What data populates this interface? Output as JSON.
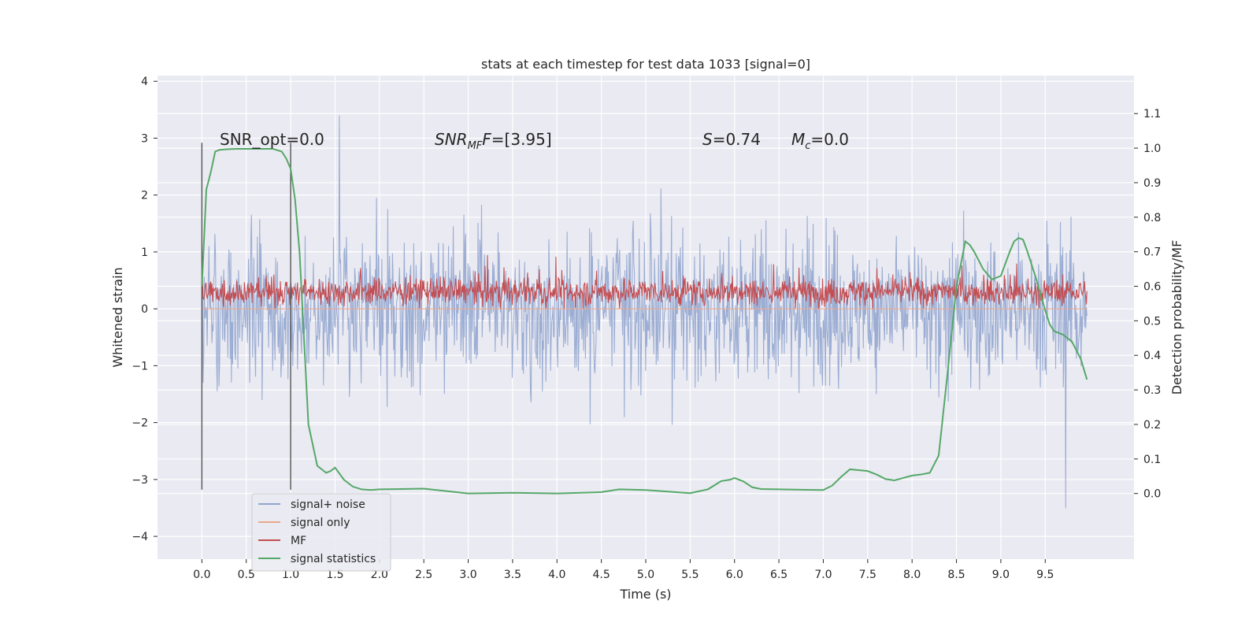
{
  "chart_data": {
    "type": "line",
    "title": "stats at each timestep for test data 1033 [signal=0]",
    "xlabel": "Time (s)",
    "ylabel": "Whitened strain",
    "y2label": "Detection probability/MF",
    "xlim": [
      -0.5,
      10.5
    ],
    "ylim": [
      -4.4,
      4.1
    ],
    "y2lim": [
      -0.19,
      1.21
    ],
    "xticks": [
      "0.0",
      "0.5",
      "1.0",
      "1.5",
      "2.0",
      "2.5",
      "3.0",
      "3.5",
      "4.0",
      "4.5",
      "5.0",
      "5.5",
      "6.0",
      "6.5",
      "7.0",
      "7.5",
      "8.0",
      "8.5",
      "9.0",
      "9.5"
    ],
    "yticks": [
      "−4",
      "−3",
      "−2",
      "−1",
      "0",
      "1",
      "2",
      "3",
      "4"
    ],
    "y2ticks": [
      "0.0",
      "0.1",
      "0.2",
      "0.3",
      "0.4",
      "0.5",
      "0.6",
      "0.7",
      "0.8",
      "0.9",
      "1.0",
      "1.1"
    ],
    "grid": true,
    "legend_position": "lower-left",
    "annotations": {
      "snr_opt": "SNR_opt=0.0",
      "snr_mf_base": "SNR",
      "snr_mf_sub": "MF",
      "snr_mf_tail": "=[3.95]",
      "s_var": "S",
      "s_val": "=0.74",
      "mc_var": "M",
      "mc_sub": "c",
      "mc_val": "=0.0"
    },
    "vertical_markers": [
      0.0,
      1.0
    ],
    "series": [
      {
        "name": "signal+ noise",
        "color": "#92a6cf",
        "description_range": [
          -4.0,
          3.75
        ]
      },
      {
        "name": "signal only",
        "color": "#e9a98f",
        "values_constant": 0.0
      },
      {
        "name": "MF",
        "color": "#c44e52",
        "description_range": [
          0.0,
          0.98
        ]
      },
      {
        "name": "signal statistics",
        "color": "#55a868",
        "axis": "right",
        "x": [
          0.0,
          0.05,
          0.1,
          0.15,
          0.2,
          0.3,
          0.4,
          0.5,
          0.6,
          0.7,
          0.8,
          0.9,
          0.95,
          1.0,
          1.05,
          1.1,
          1.15,
          1.2,
          1.25,
          1.3,
          1.4,
          1.45,
          1.5,
          1.6,
          1.7,
          1.8,
          1.9,
          2.0,
          2.5,
          3.0,
          3.5,
          4.0,
          4.5,
          4.7,
          5.0,
          5.5,
          5.7,
          5.85,
          5.95,
          6.0,
          6.1,
          6.2,
          6.3,
          6.5,
          7.0,
          7.1,
          7.2,
          7.3,
          7.5,
          7.6,
          7.7,
          7.8,
          7.9,
          8.0,
          8.1,
          8.2,
          8.3,
          8.4,
          8.5,
          8.6,
          8.65,
          8.7,
          8.8,
          8.9,
          9.0,
          9.1,
          9.15,
          9.2,
          9.25,
          9.3,
          9.4,
          9.5,
          9.55,
          9.6,
          9.7,
          9.8,
          9.9,
          9.97
        ],
        "values": [
          0.6,
          0.88,
          0.93,
          0.99,
          0.995,
          0.997,
          0.998,
          0.998,
          0.998,
          0.998,
          0.998,
          0.99,
          0.97,
          0.94,
          0.85,
          0.7,
          0.45,
          0.2,
          0.14,
          0.08,
          0.06,
          0.065,
          0.075,
          0.04,
          0.02,
          0.012,
          0.01,
          0.012,
          0.014,
          0.0,
          0.002,
          0.0,
          0.004,
          0.012,
          0.01,
          0.001,
          0.012,
          0.036,
          0.04,
          0.045,
          0.035,
          0.018,
          0.013,
          0.012,
          0.01,
          0.023,
          0.048,
          0.07,
          0.065,
          0.055,
          0.042,
          0.038,
          0.045,
          0.052,
          0.055,
          0.06,
          0.11,
          0.35,
          0.6,
          0.73,
          0.72,
          0.7,
          0.65,
          0.62,
          0.63,
          0.7,
          0.73,
          0.74,
          0.735,
          0.7,
          0.62,
          0.53,
          0.49,
          0.47,
          0.46,
          0.44,
          0.39,
          0.33
        ]
      }
    ]
  }
}
